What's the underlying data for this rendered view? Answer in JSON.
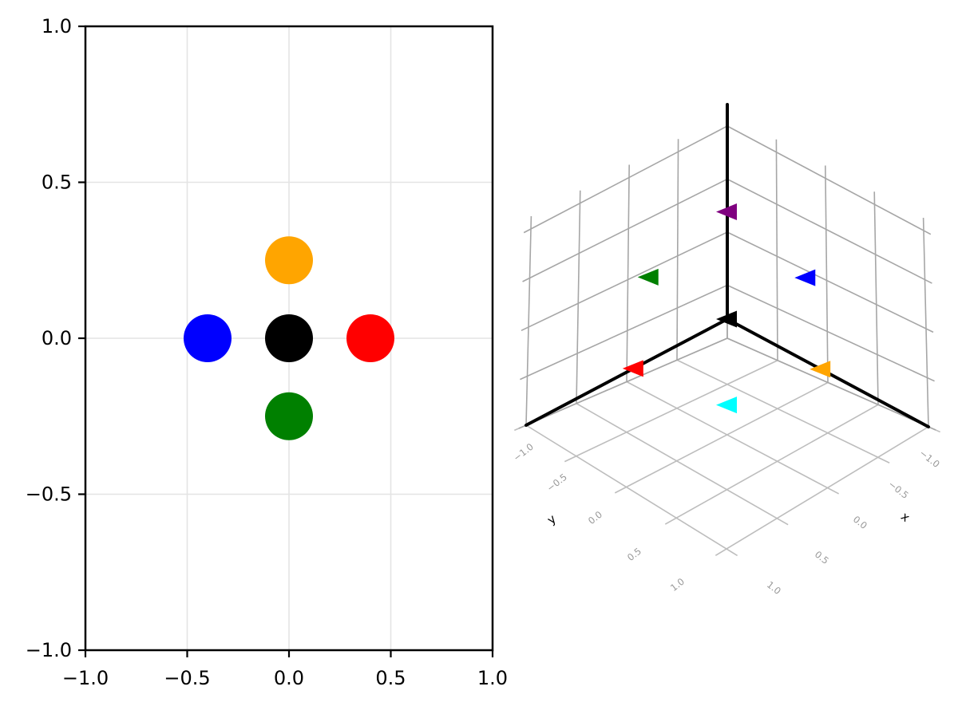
{
  "figure": {
    "background": "#ffffff"
  },
  "chart_data": [
    {
      "type": "scatter",
      "title": "",
      "xlabel": "",
      "ylabel": "",
      "xlim": [
        -1.0,
        1.0
      ],
      "ylim": [
        -1.0,
        1.0
      ],
      "grid": true,
      "marker": "circle",
      "xtick_values": [
        -1.0,
        -0.5,
        0.0,
        0.5,
        1.0
      ],
      "ytick_values": [
        -1.0,
        -0.5,
        0.0,
        0.5,
        1.0
      ],
      "xtick_labels": [
        "−1.0",
        "−0.5",
        "0.0",
        "0.5",
        "1.0"
      ],
      "ytick_labels": [
        "−1.0",
        "−0.5",
        "0.0",
        "0.5",
        "1.0"
      ],
      "points": [
        {
          "name": "black",
          "x": 0.0,
          "y": 0.0,
          "color": "#000000"
        },
        {
          "name": "blue",
          "x": -0.4,
          "y": 0.0,
          "color": "#0000ff"
        },
        {
          "name": "red",
          "x": 0.4,
          "y": 0.0,
          "color": "#ff0000"
        },
        {
          "name": "orange",
          "x": 0.0,
          "y": 0.25,
          "color": "#ffa500"
        },
        {
          "name": "green",
          "x": 0.0,
          "y": -0.25,
          "color": "#008000"
        }
      ]
    },
    {
      "type": "scatter3d",
      "title": "",
      "xlabel": "x",
      "ylabel": "y",
      "zlabel": "",
      "xlim": [
        -1.0,
        1.0
      ],
      "ylim": [
        -1.0,
        1.0
      ],
      "zlim": [
        -1.0,
        1.0
      ],
      "grid": true,
      "marker": "triangle-left",
      "xtick_labels": [
        "−1.0",
        "−0.5",
        "0.0",
        "0.5",
        "1.0"
      ],
      "ytick_labels": [
        "−1.0",
        "−0.5",
        "0.0",
        "0.5",
        "1.0"
      ],
      "axis_lines": {
        "color": "#000000",
        "span": "origin to +1 on x, y, z"
      },
      "points": [
        {
          "name": "black",
          "x": 0.0,
          "y": 0.0,
          "z": 0.0,
          "color": "#000000"
        },
        {
          "name": "orange",
          "x": 0.5,
          "y": 0.0,
          "z": 0.0,
          "color": "#ffa500"
        },
        {
          "name": "green",
          "x": -0.5,
          "y": 0.0,
          "z": 0.0,
          "color": "#008000"
        },
        {
          "name": "red",
          "x": 0.0,
          "y": 0.5,
          "z": 0.0,
          "color": "#ff0000"
        },
        {
          "name": "blue",
          "x": 0.0,
          "y": -0.5,
          "z": 0.0,
          "color": "#0000ff"
        },
        {
          "name": "purple",
          "x": 0.0,
          "y": 0.0,
          "z": 0.5,
          "color": "#800080"
        },
        {
          "name": "cyan",
          "x": 0.0,
          "y": 0.0,
          "z": -0.5,
          "color": "#00ffff"
        }
      ]
    }
  ]
}
